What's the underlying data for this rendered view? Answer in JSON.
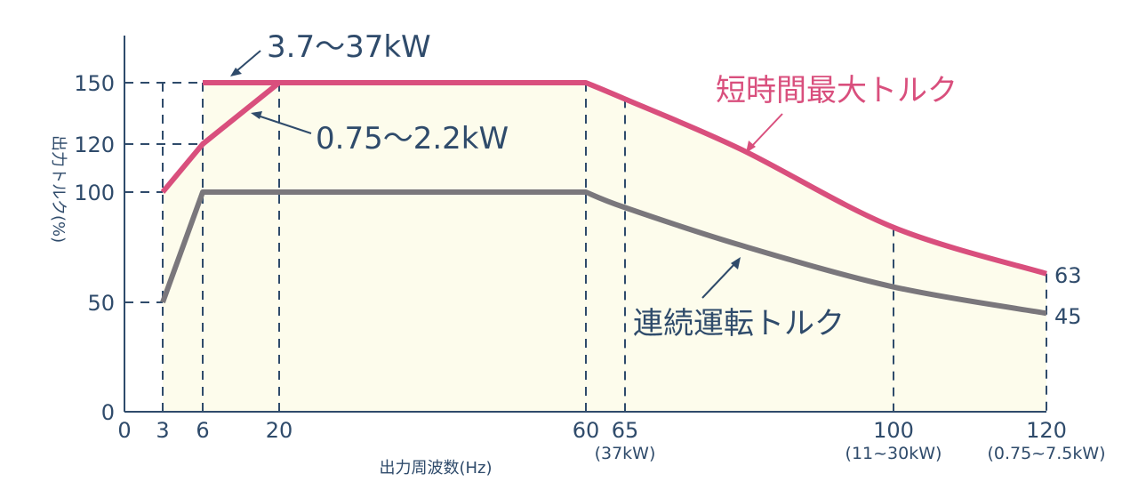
{
  "chart_data": {
    "type": "line",
    "title": "",
    "xlabel": "出力周波数(Hz)",
    "ylabel": "出力トルク(%)",
    "xlim": [
      0,
      120
    ],
    "ylim": [
      0,
      150
    ],
    "x_scale": "piecewise (non-uniform tick spacing)",
    "x_ticks": [
      "0",
      "3",
      "6",
      "20",
      "60",
      "65",
      "100",
      "120"
    ],
    "x_tick_sublabels": {
      "65": "(37kW)",
      "100": "(11~30kW)",
      "120": "(0.75~7.5kW)"
    },
    "y_ticks": [
      "0",
      "50",
      "100",
      "120",
      "150"
    ],
    "grid": "dashed reference lines at ticks",
    "fill_color": "#fdfcec",
    "series": [
      {
        "name": "短時間最大トルク",
        "sublabel": "3.7~37kW",
        "color": "#d94f7d",
        "x": [
          6,
          60,
          65,
          80,
          100,
          120
        ],
        "y": [
          150,
          150,
          142,
          118,
          84,
          63
        ]
      },
      {
        "name": "短時間最大トルク",
        "sublabel": "0.75~2.2kW",
        "color": "#d94f7d",
        "x": [
          3,
          6,
          20
        ],
        "y": [
          100,
          120,
          150
        ]
      },
      {
        "name": "連続運転トルク",
        "color": "#7a777c",
        "x": [
          3,
          6,
          60,
          65,
          80,
          100,
          120
        ],
        "y": [
          50,
          100,
          100,
          93,
          76,
          57,
          45
        ]
      }
    ],
    "annotations": {
      "short_label": "短時間最大トルク",
      "cont_label": "連続運転トルク",
      "range_a": "3.7～37kW",
      "range_b": "0.75～2.2kW",
      "end_short": "63",
      "end_cont": "45"
    }
  }
}
